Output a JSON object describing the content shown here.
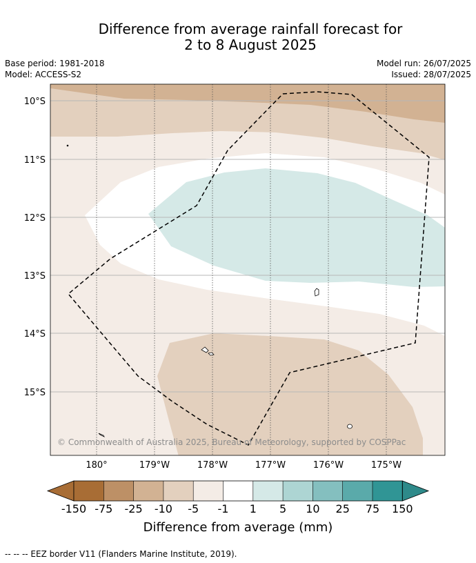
{
  "title_line1": "Difference from average rainfall forecast for",
  "title_line2": "2 to 8 August 2025",
  "meta_left": {
    "base_period": "Base period: 1981-2018",
    "model": "Model: ACCESS-S2"
  },
  "meta_right": {
    "model_run": "Model run: 26/07/2025",
    "issued": "Issued: 28/07/2025"
  },
  "map": {
    "lat_labels": [
      "10°S",
      "11°S",
      "12°S",
      "13°S",
      "14°S",
      "15°S"
    ],
    "lon_labels": [
      "180°",
      "179°W",
      "178°W",
      "177°W",
      "176°W",
      "175°W"
    ],
    "copyright": "© Commonwealth of Australia 2025, Bureau of Meteorology, supported by COSPPac",
    "colors": {
      "dry_strong": "#d2b293",
      "dry_mid": "#e3d0be",
      "dry_light": "#f4ece6",
      "neutral": "#ffffff",
      "wet_light": "#d5e9e7"
    }
  },
  "colorbar": {
    "ticks": [
      "-150",
      "-75",
      "-25",
      "-10",
      "-5",
      "-1",
      "1",
      "5",
      "10",
      "25",
      "75",
      "150"
    ],
    "colors": [
      "#a86d35",
      "#bd9066",
      "#d2b293",
      "#e3d0be",
      "#f4ece6",
      "#ffffff",
      "#d5e9e7",
      "#add5d3",
      "#84bfbf",
      "#5aaaaa",
      "#309595"
    ],
    "extend_low_color": "#a86d35",
    "extend_high_color": "#2e8a8a",
    "label": "Difference from average (mm)"
  },
  "footer": "--  --  -- EEZ border V11 (Flanders Marine Institute, 2019)."
}
